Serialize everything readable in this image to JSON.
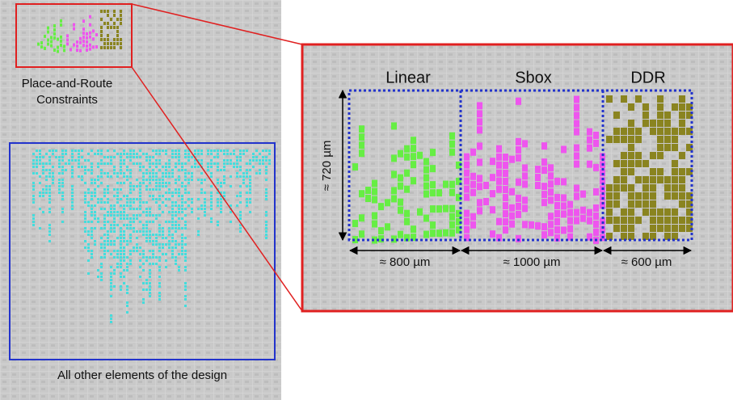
{
  "left_panel": {
    "constraints_label": [
      "Place-and-Route",
      "Constraints"
    ],
    "other_label": "All other elements of the design"
  },
  "zoom_panel": {
    "height_label": "≈ 720 µm",
    "groups": [
      {
        "label": "Linear",
        "width_label": "≈ 800 µm"
      },
      {
        "label": "Sbox",
        "width_label": "≈ 1000 µm"
      },
      {
        "label": "DDR",
        "width_label": "≈ 600 µm"
      }
    ]
  }
}
